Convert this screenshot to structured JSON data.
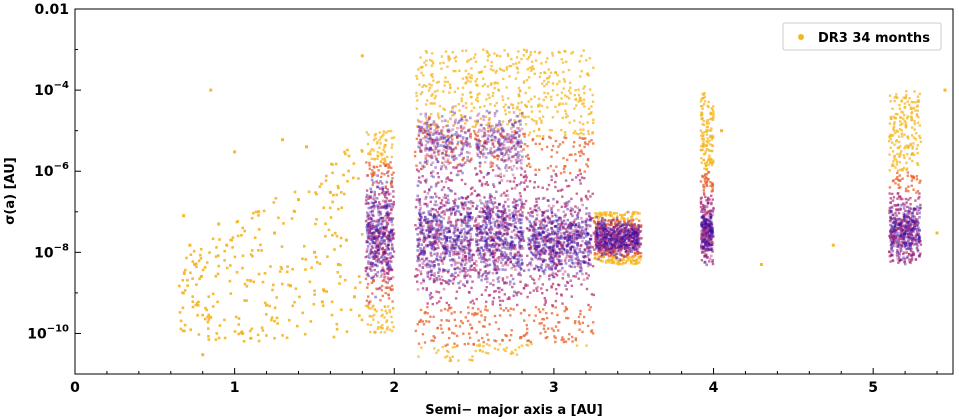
{
  "chart_data": {
    "type": "scatter",
    "x_axis": {
      "label": "Semi− major axis a [AU]",
      "range": [
        0,
        5.5
      ],
      "scale": "linear",
      "ticks": [
        0,
        1,
        2,
        3,
        4,
        5
      ],
      "tick_labels": [
        "0",
        "1",
        "2",
        "3",
        "4",
        "5"
      ]
    },
    "y_axis": {
      "label": "σ(a) [AU]",
      "range": [
        1e-11,
        0.01
      ],
      "scale": "log",
      "ticks": [
        1e-10,
        1e-08,
        1e-06,
        0.0001,
        0.01
      ],
      "tick_labels": [
        "10−10",
        "10−8",
        "10−6",
        "10−4",
        "0.01"
      ]
    },
    "grid": false,
    "legend": {
      "position": "top-right",
      "entries": [
        "DR3 34 months"
      ]
    },
    "colors": {
      "outlier": "#f5b520",
      "dense_core": "#3a0ca3",
      "mid": "#b5367a",
      "edge": "#e8622b"
    },
    "series": [
      {
        "name": "DR3 34 months",
        "populations": [
          {
            "a_range": [
              1.82,
              2.0
            ],
            "sigma_range": [
              1e-10,
              1e-05
            ],
            "core": [
              3e-09,
              3e-07
            ]
          },
          {
            "a_range": [
              2.13,
              2.5
            ],
            "sigma_range": [
              2e-11,
              0.001
            ],
            "core": [
              3e-09,
              2e-07
            ],
            "upper_core": [
              3e-06,
              1e-05
            ]
          },
          {
            "a_range": [
              2.5,
              2.82
            ],
            "sigma_range": [
              3e-11,
              0.001
            ],
            "core": [
              3e-09,
              2e-07
            ],
            "upper_core": [
              3e-06,
              1e-05
            ]
          },
          {
            "a_range": [
              2.82,
              3.25
            ],
            "sigma_range": [
              5e-11,
              0.001
            ],
            "core": [
              4e-09,
              1e-07
            ]
          },
          {
            "a_range": [
              3.25,
              3.55
            ],
            "sigma_range": [
              5e-09,
              1e-07
            ],
            "core": [
              1e-08,
              5e-08
            ]
          },
          {
            "a_range": [
              3.92,
              4.0
            ],
            "sigma_range": [
              5e-09,
              0.0001
            ],
            "core": [
              1e-08,
              1e-07
            ]
          },
          {
            "a_range": [
              5.1,
              5.3
            ],
            "sigma_range": [
              5e-09,
              0.0001
            ],
            "core": [
              1e-08,
              1e-07
            ]
          }
        ],
        "scattered_points": [
          [
            0.68,
            8e-08
          ],
          [
            0.72,
            1.5e-08
          ],
          [
            0.75,
            5e-09
          ],
          [
            0.8,
            3e-11
          ],
          [
            0.85,
            0.0001
          ],
          [
            0.9,
            5e-08
          ],
          [
            0.95,
            1.5e-08
          ],
          [
            1.0,
            3e-06
          ],
          [
            1.05,
            1e-10
          ],
          [
            1.1,
            2e-09
          ],
          [
            1.15,
            1e-07
          ],
          [
            1.2,
            5e-10
          ],
          [
            1.25,
            3e-08
          ],
          [
            1.3,
            6e-06
          ],
          [
            1.35,
            1.5e-09
          ],
          [
            1.4,
            2e-07
          ],
          [
            1.45,
            4e-06
          ],
          [
            1.5,
            1e-08
          ],
          [
            1.55,
            6e-10
          ],
          [
            1.6,
            3e-07
          ],
          [
            1.65,
            5e-09
          ],
          [
            1.7,
            2e-08
          ],
          [
            1.75,
            8e-10
          ],
          [
            4.05,
            1e-05
          ],
          [
            4.3,
            5e-09
          ],
          [
            4.75,
            1.5e-08
          ],
          [
            5.45,
            0.0001
          ],
          [
            5.4,
            3e-08
          ],
          [
            0.85,
            2.5e-10
          ],
          [
            1.8,
            0.0007
          ]
        ]
      }
    ]
  }
}
